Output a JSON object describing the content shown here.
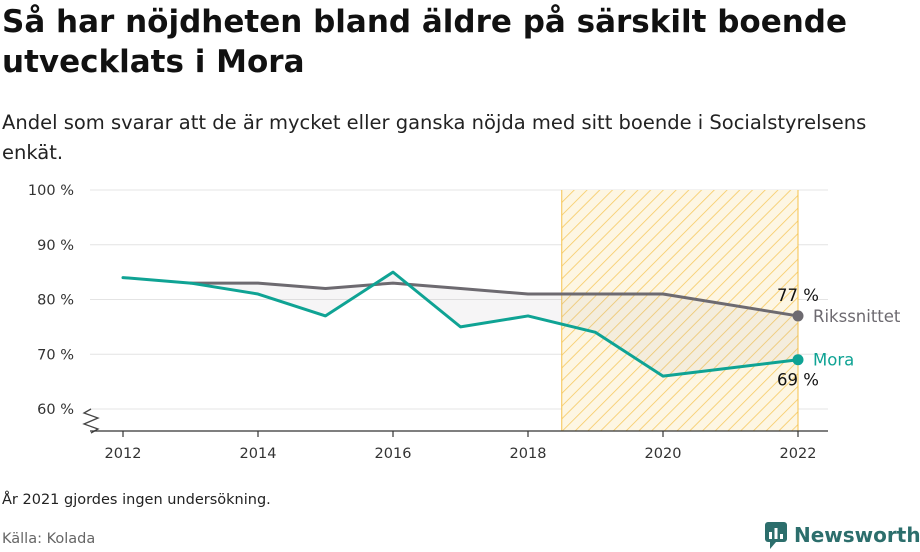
{
  "title": "Så har nöjdheten bland äldre på särskilt boende utvecklats i Mora",
  "subtitle": "Andel som svarar att de är mycket eller ganska nöjda med sitt boende i Socialstyrelsens enkät.",
  "note": "År 2021 gjordes ingen undersökning.",
  "source": "Källa: Kolada",
  "brand": "Newsworthy",
  "colors": {
    "mora": "#0fa394",
    "riket": "#6d6a70",
    "highlight": "#f5c24b",
    "grid": "#e4e4e4"
  },
  "chart_data": {
    "type": "line",
    "x": [
      2012,
      2013,
      2014,
      2015,
      2016,
      2017,
      2018,
      2019,
      2020,
      2022
    ],
    "xticks": [
      "2012",
      "2014",
      "2016",
      "2018",
      "2020",
      "2022"
    ],
    "yticks": [
      "60 %",
      "70 %",
      "80 %",
      "90 %",
      "100 %"
    ],
    "ylim": [
      60,
      100
    ],
    "highlight_range": [
      2018.5,
      2022
    ],
    "series": [
      {
        "name": "Rikssnittet",
        "color": "#6d6a70",
        "values": [
          null,
          83,
          83,
          82,
          83,
          82,
          81,
          81,
          81,
          77
        ],
        "end_label": "77 %"
      },
      {
        "name": "Mora",
        "color": "#0fa394",
        "values": [
          84,
          83,
          81,
          77,
          85,
          75,
          77,
          74,
          66,
          69
        ],
        "end_label": "69 %"
      }
    ]
  }
}
